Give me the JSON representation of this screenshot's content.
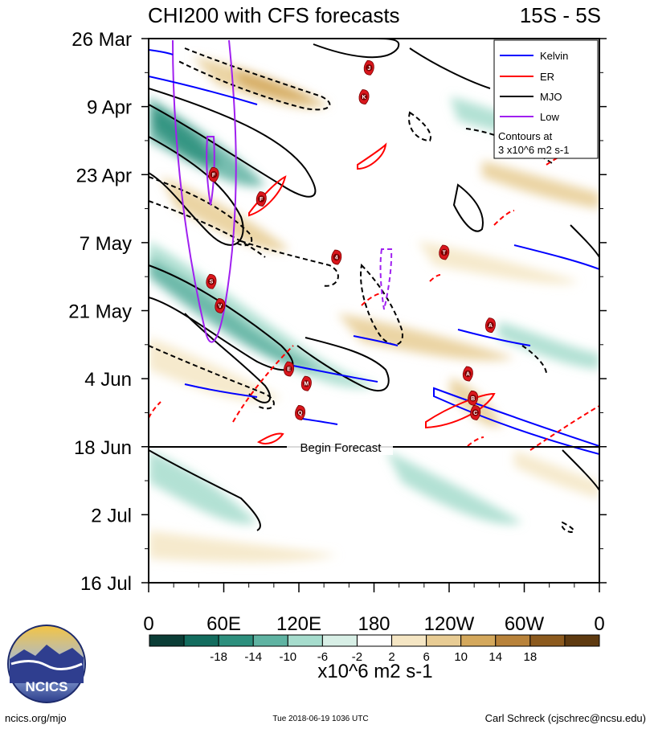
{
  "chart_data": {
    "type": "heatmap",
    "title": "CHI200 with CFS forecasts",
    "subtitle": "15S - 5S",
    "x_tick_labels": [
      "0",
      "60E",
      "120E",
      "180",
      "120W",
      "60W",
      "0"
    ],
    "x_range_deg_east": [
      0,
      360
    ],
    "y_tick_labels": [
      "26 Mar",
      "9 Apr",
      "23 Apr",
      "7 May",
      "21 May",
      "4 Jun",
      "18 Jun",
      "2 Jul",
      "16 Jul"
    ],
    "y_range": [
      "26 Mar",
      "16 Jul"
    ],
    "forecast_start_label": "Begin Forecast",
    "colorbar": {
      "ticks": [
        "-18",
        "-14",
        "-10",
        "-6",
        "-2",
        "2",
        "6",
        "10",
        "14",
        "18"
      ],
      "units": "x10^6 m2 s-1",
      "colors": [
        "#0b3d36",
        "#136c5e",
        "#2d8f7d",
        "#5fb3a2",
        "#a6dccd",
        "#d8efe6",
        "#ffffff",
        "#f5e6c4",
        "#e8cc94",
        "#d4a85c",
        "#b8823a",
        "#8c5a1e",
        "#5e3a10"
      ]
    },
    "legend": {
      "placement": "top-right",
      "entries": [
        {
          "name": "Kelvin",
          "color": "#0000ff"
        },
        {
          "name": "ER",
          "color": "#ff0000"
        },
        {
          "name": "MJO",
          "color": "#000000"
        },
        {
          "name": "Low",
          "color": "#a020f0"
        }
      ],
      "note_line1": "Contours at",
      "note_line2": "3 x10^6 m2 s-1"
    },
    "storm_markers": [
      {
        "letter": "J",
        "lon": 176,
        "date_day": 6
      },
      {
        "letter": "K",
        "lon": 172,
        "date_day": 12
      },
      {
        "letter": "F",
        "lon": 52,
        "date_day": 28
      },
      {
        "letter": "F",
        "lon": 90,
        "date_day": 33
      },
      {
        "letter": "4",
        "lon": 150,
        "date_day": 45
      },
      {
        "letter": "T",
        "lon": 236,
        "date_day": 44
      },
      {
        "letter": "S",
        "lon": 50,
        "date_day": 50
      },
      {
        "letter": "V",
        "lon": 57,
        "date_day": 55
      },
      {
        "letter": "A",
        "lon": 273,
        "date_day": 59
      },
      {
        "letter": "E",
        "lon": 112,
        "date_day": 68
      },
      {
        "letter": "M",
        "lon": 126,
        "date_day": 71
      },
      {
        "letter": "A",
        "lon": 255,
        "date_day": 69
      },
      {
        "letter": "B",
        "lon": 259,
        "date_day": 74
      },
      {
        "letter": "Q",
        "lon": 121,
        "date_day": 77
      },
      {
        "letter": "C",
        "lon": 261,
        "date_day": 77
      }
    ]
  },
  "footer": {
    "logo_text": "NCICS",
    "left": "ncics.org/mjo",
    "center": "Tue 2018-06-19 1036 UTC",
    "right": "Carl Schreck (cjschrec@ncsu.edu)"
  }
}
